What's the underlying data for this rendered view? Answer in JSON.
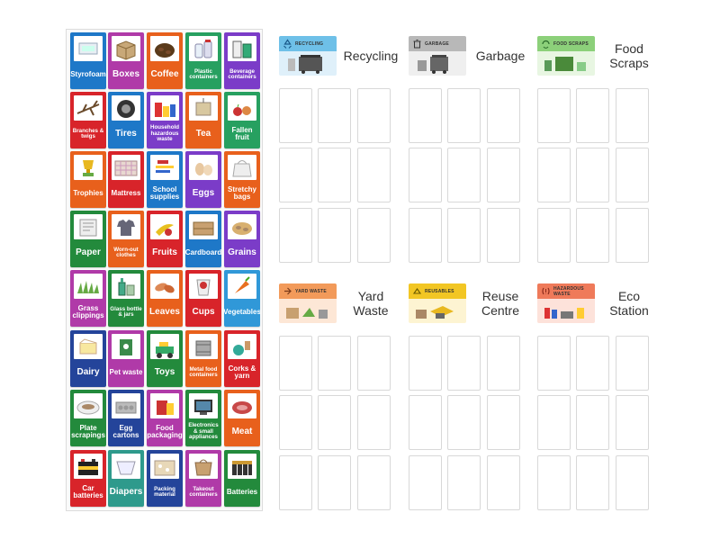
{
  "colors": {
    "blue": "#1e78c8",
    "brown": "#a0522d",
    "orange": "#e8601c",
    "green": "#27a060",
    "purple": "#7b3cc8",
    "red": "#d8242a",
    "darkgreen": "#238a3c",
    "darkblue": "#24449a",
    "magenta": "#b03aa8",
    "teal": "#2e9a8c",
    "lightblue": "#3098d8",
    "olive": "#6a9a2a"
  },
  "tray": {
    "items": [
      {
        "label": "Styrofoam",
        "color": "#1e78c8",
        "icon": "styrofoam-icon"
      },
      {
        "label": "Boxes",
        "color": "#b03aa8",
        "icon": "box-icon"
      },
      {
        "label": "Coffee",
        "color": "#e8601c",
        "icon": "coffee-icon"
      },
      {
        "label": "Plastic containers",
        "color": "#27a060",
        "icon": "plastic-containers-icon"
      },
      {
        "label": "Beverage containers",
        "color": "#7b3cc8",
        "icon": "beverage-icon"
      },
      {
        "label": "Branches & twigs",
        "color": "#d8242a",
        "icon": "branches-icon"
      },
      {
        "label": "Tires",
        "color": "#1e78c8",
        "icon": "tire-icon"
      },
      {
        "label": "Household hazardous waste",
        "color": "#7b3cc8",
        "icon": "hazardous-icon"
      },
      {
        "label": "Tea",
        "color": "#e8601c",
        "icon": "tea-icon"
      },
      {
        "label": "Fallen fruit",
        "color": "#27a060",
        "icon": "fallen-fruit-icon"
      },
      {
        "label": "Trophies",
        "color": "#e8601c",
        "icon": "trophy-icon"
      },
      {
        "label": "Mattress",
        "color": "#d8242a",
        "icon": "mattress-icon"
      },
      {
        "label": "School supplies",
        "color": "#1e78c8",
        "icon": "school-supplies-icon"
      },
      {
        "label": "Eggs",
        "color": "#7b3cc8",
        "icon": "eggs-icon"
      },
      {
        "label": "Stretchy bags",
        "color": "#e8601c",
        "icon": "bag-icon"
      },
      {
        "label": "Paper",
        "color": "#238a3c",
        "icon": "paper-icon"
      },
      {
        "label": "Worn-out clothes",
        "color": "#e8601c",
        "icon": "clothes-icon"
      },
      {
        "label": "Fruits",
        "color": "#d8242a",
        "icon": "fruits-icon"
      },
      {
        "label": "Cardboard",
        "color": "#1e78c8",
        "icon": "cardboard-icon"
      },
      {
        "label": "Grains",
        "color": "#7b3cc8",
        "icon": "grains-icon"
      },
      {
        "label": "Grass clippings",
        "color": "#b03aa8",
        "icon": "grass-icon"
      },
      {
        "label": "Glass bottle & jars",
        "color": "#238a3c",
        "icon": "glass-bottle-icon"
      },
      {
        "label": "Leaves",
        "color": "#e8601c",
        "icon": "leaves-icon"
      },
      {
        "label": "Cups",
        "color": "#d8242a",
        "icon": "cup-icon"
      },
      {
        "label": "Vegetables",
        "color": "#3098d8",
        "icon": "vegetables-icon"
      },
      {
        "label": "Dairy",
        "color": "#24449a",
        "icon": "dairy-icon"
      },
      {
        "label": "Pet waste",
        "color": "#b03aa8",
        "icon": "pet-waste-icon"
      },
      {
        "label": "Toys",
        "color": "#238a3c",
        "icon": "toys-icon"
      },
      {
        "label": "Metal food containers",
        "color": "#e8601c",
        "icon": "metal-can-icon"
      },
      {
        "label": "Corks & yarn",
        "color": "#d8242a",
        "icon": "yarn-icon"
      },
      {
        "label": "Plate scrapings",
        "color": "#238a3c",
        "icon": "plate-icon"
      },
      {
        "label": "Egg cartons",
        "color": "#24449a",
        "icon": "egg-carton-icon"
      },
      {
        "label": "Food packaging",
        "color": "#b03aa8",
        "icon": "food-packaging-icon"
      },
      {
        "label": "Electronics & small appliances",
        "color": "#238a3c",
        "icon": "electronics-icon"
      },
      {
        "label": "Meat",
        "color": "#e8601c",
        "icon": "meat-icon"
      },
      {
        "label": "Car batteries",
        "color": "#d8242a",
        "icon": "car-battery-icon"
      },
      {
        "label": "Diapers",
        "color": "#2e9a8c",
        "icon": "diaper-icon"
      },
      {
        "label": "Packing material",
        "color": "#24449a",
        "icon": "packing-icon"
      },
      {
        "label": "Takeout containers",
        "color": "#b03aa8",
        "icon": "takeout-icon"
      },
      {
        "label": "Batteries",
        "color": "#238a3c",
        "icon": "batteries-icon"
      }
    ]
  },
  "categories": [
    {
      "title": "Recycling",
      "badge_text": "RECYCLING",
      "band_color": "#6ec0e8",
      "body_color": "#dff0fa",
      "icon": "recycle-icon"
    },
    {
      "title": "Garbage",
      "badge_text": "GARBAGE",
      "band_color": "#b8b8b8",
      "body_color": "#efefef",
      "icon": "garbage-icon"
    },
    {
      "title": "Food\nScraps",
      "badge_text": "FOOD SCRAPS",
      "band_color": "#8cd07a",
      "body_color": "#e8f6e2",
      "icon": "food-scraps-icon"
    },
    {
      "title": "Yard\nWaste",
      "badge_text": "YARD WASTE",
      "band_color": "#f29a5a",
      "body_color": "#fde7d6",
      "icon": "yard-waste-icon"
    },
    {
      "title": "Reuse\nCentre",
      "badge_text": "REUSABLES",
      "band_color": "#f2c624",
      "body_color": "#fdf4d2",
      "icon": "reusables-icon"
    },
    {
      "title": "Eco\nStation",
      "badge_text": "HAZARDOUS WASTE",
      "band_color": "#ef7a5a",
      "body_color": "#fde2da",
      "icon": "hazardous-waste-icon"
    }
  ]
}
